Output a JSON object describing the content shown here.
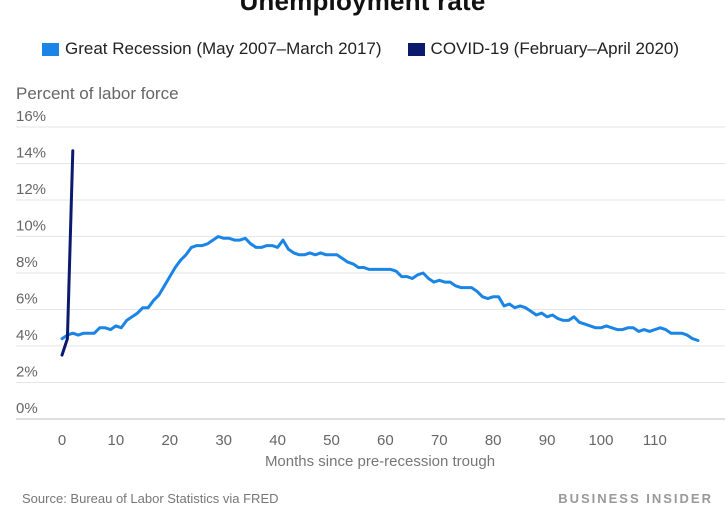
{
  "chart_data": {
    "type": "line",
    "title": "Unemployment rate",
    "ylabel": "Percent of labor force",
    "xlabel": "Months since pre-recession trough",
    "xlim": [
      0,
      118
    ],
    "ylim": [
      0,
      16
    ],
    "yticks": [
      "0%",
      "2%",
      "4%",
      "6%",
      "8%",
      "10%",
      "12%",
      "14%",
      "16%"
    ],
    "xticks": [
      "0",
      "10",
      "20",
      "30",
      "40",
      "50",
      "60",
      "70",
      "80",
      "90",
      "100",
      "110"
    ],
    "grid": "horizontal",
    "legend": "top",
    "series": [
      {
        "name": "Great Recession (May 2007–March 2017)",
        "color": "#1a85e6",
        "x": [
          0,
          1,
          2,
          3,
          4,
          5,
          6,
          7,
          8,
          9,
          10,
          11,
          12,
          13,
          14,
          15,
          16,
          17,
          18,
          19,
          20,
          21,
          22,
          23,
          24,
          25,
          26,
          27,
          28,
          29,
          30,
          31,
          32,
          33,
          34,
          35,
          36,
          37,
          38,
          39,
          40,
          41,
          42,
          43,
          44,
          45,
          46,
          47,
          48,
          49,
          50,
          51,
          52,
          53,
          54,
          55,
          56,
          57,
          58,
          59,
          60,
          61,
          62,
          63,
          64,
          65,
          66,
          67,
          68,
          69,
          70,
          71,
          72,
          73,
          74,
          75,
          76,
          77,
          78,
          79,
          80,
          81,
          82,
          83,
          84,
          85,
          86,
          87,
          88,
          89,
          90,
          91,
          92,
          93,
          94,
          95,
          96,
          97,
          98,
          99,
          100,
          101,
          102,
          103,
          104,
          105,
          106,
          107,
          108,
          109,
          110,
          111,
          112,
          113,
          114,
          115,
          116,
          117,
          118
        ],
        "values": [
          4.4,
          4.6,
          4.7,
          4.6,
          4.7,
          4.7,
          4.7,
          5.0,
          5.0,
          4.9,
          5.1,
          5.0,
          5.4,
          5.6,
          5.8,
          6.1,
          6.1,
          6.5,
          6.8,
          7.3,
          7.8,
          8.3,
          8.7,
          9.0,
          9.4,
          9.5,
          9.5,
          9.6,
          9.8,
          10.0,
          9.9,
          9.9,
          9.8,
          9.8,
          9.9,
          9.6,
          9.4,
          9.4,
          9.5,
          9.5,
          9.4,
          9.8,
          9.3,
          9.1,
          9.0,
          9.0,
          9.1,
          9.0,
          9.1,
          9.0,
          9.0,
          9.0,
          8.8,
          8.6,
          8.5,
          8.3,
          8.3,
          8.2,
          8.2,
          8.2,
          8.2,
          8.2,
          8.1,
          7.8,
          7.8,
          7.7,
          7.9,
          8.0,
          7.7,
          7.5,
          7.6,
          7.5,
          7.5,
          7.3,
          7.2,
          7.2,
          7.2,
          7.0,
          6.7,
          6.6,
          6.7,
          6.7,
          6.2,
          6.3,
          6.1,
          6.2,
          6.1,
          5.9,
          5.7,
          5.8,
          5.6,
          5.7,
          5.5,
          5.4,
          5.4,
          5.6,
          5.3,
          5.2,
          5.1,
          5.0,
          5.0,
          5.1,
          5.0,
          4.9,
          4.9,
          5.0,
          5.0,
          4.8,
          4.9,
          4.8,
          4.9,
          5.0,
          4.9,
          4.7,
          4.7,
          4.7,
          4.6,
          4.4,
          4.3
        ]
      },
      {
        "name": "COVID-19 (February–April 2020)",
        "color": "#0c1a6e",
        "x": [
          0,
          1,
          2
        ],
        "values": [
          3.5,
          4.4,
          14.7
        ]
      }
    ]
  },
  "source": "Source: Bureau of Labor Statistics via FRED",
  "credit": "BUSINESS INSIDER"
}
